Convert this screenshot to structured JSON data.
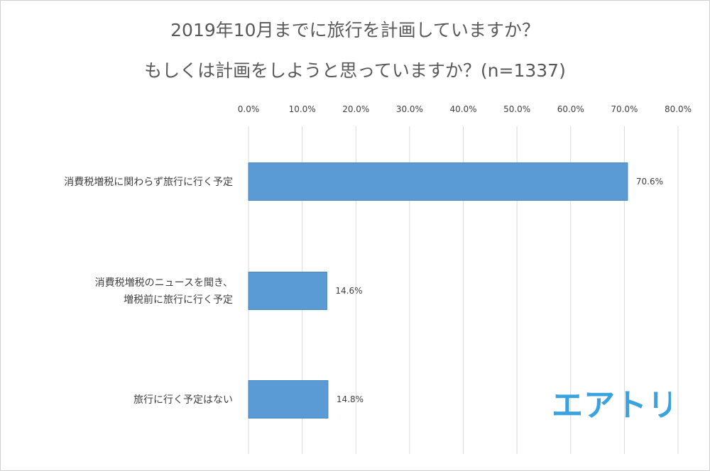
{
  "chart_data": {
    "type": "bar",
    "orientation": "horizontal",
    "title_lines": [
      "2019年10月までに旅行を計画していますか？",
      "もしくは計画をしようと思っていますか？(n=1337)"
    ],
    "categories": [
      [
        "消費税増税に関わらず旅行に行く予定"
      ],
      [
        "消費税増税のニュースを聞き、",
        "増税前に旅行に行く予定"
      ],
      [
        "旅行に行く予定はない"
      ]
    ],
    "values": [
      70.6,
      14.6,
      14.8
    ],
    "data_labels": [
      "70.6%",
      "14.6%",
      "14.8%"
    ],
    "xlim": [
      0,
      80
    ],
    "x_ticks": [
      0,
      10,
      20,
      30,
      40,
      50,
      60,
      70,
      80
    ],
    "x_tick_labels": [
      "0.0%",
      "10.0%",
      "20.0%",
      "30.0%",
      "40.0%",
      "50.0%",
      "60.0%",
      "70.0%",
      "80.0%"
    ],
    "axis_position": "top",
    "grid": true,
    "bar_color": "#5b9bd5",
    "grid_color": "#d9d9d9"
  },
  "logo": {
    "text": "エアトリ",
    "color": "#3aa2df"
  }
}
